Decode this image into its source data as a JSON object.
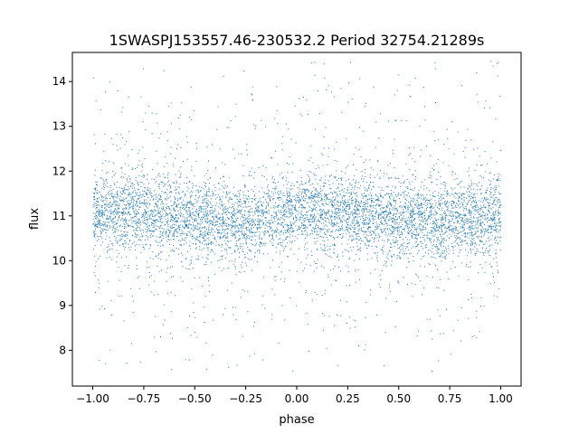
{
  "chart_data": {
    "type": "scatter",
    "title": "1SWASPJ153557.46-230532.2 Period 32754.21289s",
    "xlabel": "phase",
    "ylabel": "flux",
    "xlim": [
      -1.1,
      1.1
    ],
    "ylim": [
      7.2,
      14.65
    ],
    "x_ticks": [
      -1.0,
      -0.75,
      -0.5,
      -0.25,
      0.0,
      0.25,
      0.5,
      0.75,
      1.0
    ],
    "x_tick_labels": [
      "−1.00",
      "−0.75",
      "−0.50",
      "−0.25",
      "0.00",
      "0.25",
      "0.50",
      "0.75",
      "1.00"
    ],
    "y_ticks": [
      8,
      9,
      10,
      11,
      12,
      13,
      14
    ],
    "y_tick_labels": [
      "8",
      "9",
      "10",
      "11",
      "12",
      "13",
      "14"
    ],
    "grid": false,
    "legend": "none",
    "series": [
      {
        "color": "#1f77b4",
        "x_range": [
          -1.0,
          1.0
        ],
        "y_range": [
          7.5,
          14.5
        ],
        "phase_profile": {
          "phase": [
            -1.0,
            -0.75,
            -0.5,
            -0.25,
            0.0,
            0.25,
            0.5,
            0.75,
            1.0
          ],
          "median_flux": [
            11.1,
            11.05,
            10.95,
            10.9,
            11.1,
            11.05,
            10.95,
            10.9,
            11.1
          ]
        }
      }
    ]
  }
}
